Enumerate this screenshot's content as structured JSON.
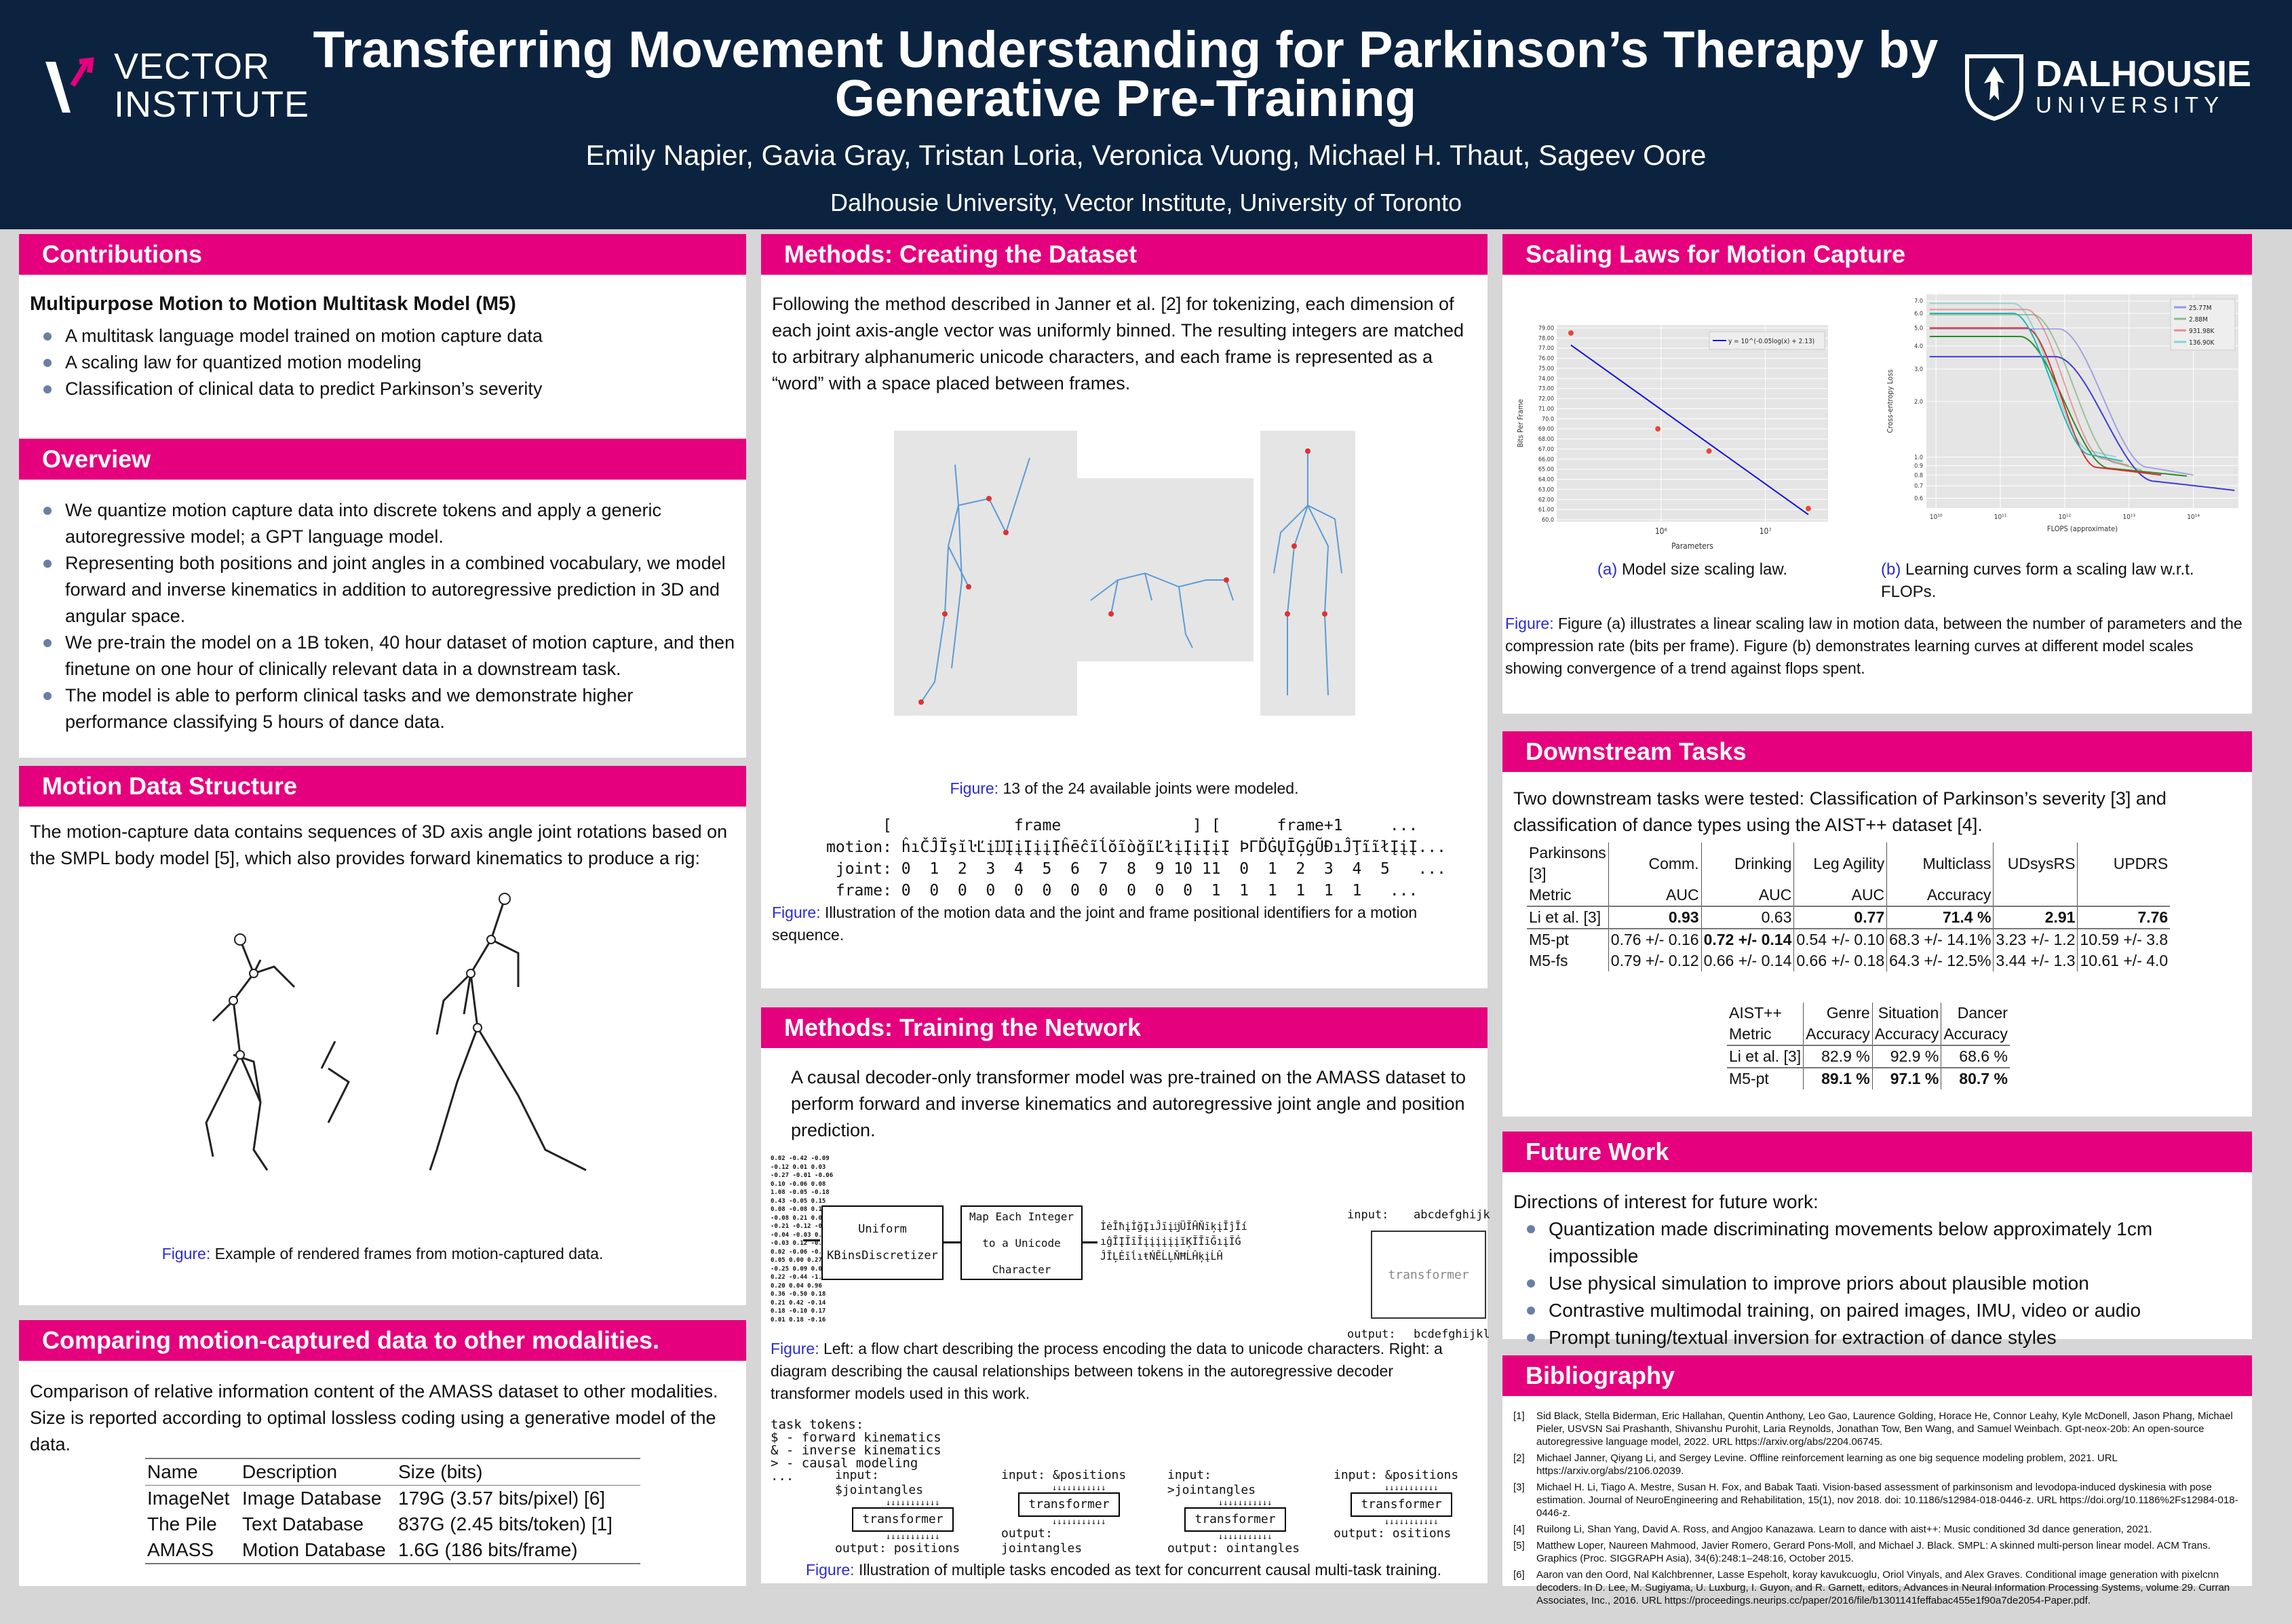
{
  "header": {
    "title": "Transferring Movement Understanding for Parkinson’s Therapy by Generative Pre-Training",
    "authors": "Emily Napier, Gavia Gray, Tristan Loria, Veronica Vuong, Michael H. Thaut, Sageev Oore",
    "affiliations": "Dalhousie University, Vector Institute, University of Toronto",
    "logo_left": "VECTOR INSTITUTE",
    "logo_left_l1": "VECTOR",
    "logo_left_l2": "INSTITUTE",
    "logo_right_l1": "DALHOUSIE",
    "logo_right_l2": "UNIVERSITY"
  },
  "colors": {
    "header": "#0c2340",
    "section": "#e5007d",
    "caption": "#2b2bd0"
  },
  "contributions": {
    "title": "Contributions",
    "subtitle": "Multipurpose Motion to Motion Multitask Model (M5)",
    "items": [
      "A multitask language model trained on motion capture data",
      "A scaling law for quantized motion modeling",
      "Classification of clinical data to predict Parkinson’s severity"
    ]
  },
  "overview": {
    "title": "Overview",
    "items": [
      "We quantize motion capture data into discrete tokens and apply a generic autoregressive model; a GPT language model.",
      "Representing both positions and joint angles in a combined vocabulary, we model forward and inverse kinematics in addition to autoregressive prediction in 3D and angular space.",
      "We pre-train the model on a 1B token, 40 hour dataset of motion capture, and then finetune on one hour of clinically relevant data in a downstream task.",
      "The model is able to perform clinical tasks and we demonstrate higher performance classifying 5 hours of dance data."
    ]
  },
  "motion_structure": {
    "title": "Motion Data Structure",
    "text": "The motion-capture data contains sequences of 3D axis angle joint rotations based on the SMPL body model [5], which also provides forward kinematics to produce a rig:",
    "fig_label": "Figure:",
    "caption": "Example of rendered frames from motion-captured data."
  },
  "comparing": {
    "title": "Comparing motion-captured data to other modalities.",
    "text": "Comparison of relative information content of the AMASS dataset to other modalities. Size is reported according to optimal lossless coding using a generative model of the data.",
    "columns": [
      "Name",
      "Description",
      "Size (bits)"
    ],
    "rows": [
      [
        "ImageNet",
        "Image Database",
        "179G (3.57 bits/pixel) [6]"
      ],
      [
        "The Pile",
        "Text Database",
        "837G (2.45 bits/token) [1]"
      ],
      [
        "AMASS",
        "Motion Database",
        "1.6G (186 bits/frame)"
      ]
    ]
  },
  "dataset": {
    "title": "Methods: Creating the Dataset",
    "text": "Following the method described in Janner et al. [2] for tokenizing, each dimension of each joint axis-angle vector was uniformly binned. The resulting integers are matched to arbitrary alphanumeric unicode characters, and each frame is represented as a “word” with a space placed between frames.",
    "fig1_label": "Figure:",
    "fig1_caption": "13 of the 24 available joints were modeled.",
    "seq": {
      "header": "      [             frame              ] [      frame+1     ...",
      "motion": "motion: ĥıČĴĬşĭŀĽįĲĮįĮįįĮĥēĉĩĺŏĩòğĩĽłįĮįĮįĮ ÞΓĎĠŲĪĢġŨĐıĴŢĩĩłĮįĮ...",
      "joint": " joint: 0  1  2  3  4  5  6  7  8  9 10 11  0  1  2  3  4  5   ...",
      "frame": " frame: 0  0  0  0  0  0  0  0  0  0  0  1  1  1  1  1  1   ..."
    },
    "fig2_label": "Figure:",
    "fig2_caption": "Illustration of the motion data and the joint and frame positional identifiers for a motion sequence."
  },
  "training": {
    "title": "Methods: Training the Network",
    "text": "A causal decoder-only transformer model was pre-trained on the AMASS dataset to perform forward and inverse kinematics and autoregressive joint angle and position prediction.",
    "numbers": [
      "0.02 -0.42 -0.09",
      "-0.12 0.01 0.03",
      "-0.27 -0.01 -0.06",
      "0.10 -0.06 0.08",
      "1.08 -0.05 -0.18",
      "0.43 -0.05 0.15",
      "0.08 -0.08 0.11",
      "-0.08 0.21 0.05",
      "-0.21 -0.12 -0.00",
      "-0.04 -0.03 0.03",
      "-0.03 0.12 -0.04",
      "0.02 -0.06 -0.29",
      "0.05 0.00 0.27",
      "-0.25 0.09 0.02",
      "0.22 -0.44 -1.08",
      "0.20 0.04 0.96",
      "0.36 -0.50 0.18",
      "0.21 0.42 -0.14",
      "0.18 -0.10 0.17",
      "0.01 0.18 -0.16"
    ],
    "box1": "Uniform KBinsDiscretizer",
    "box2": "Map Each Integer to a Unicode Character",
    "unicode_lines": [
      "İėĪħįİğĮıĴīįĳÜĬĤŇīķįĪĵĪí",
      "ıĝĪĮĬīĬįįįįįįĭĶĬĪīĞıįĬĠ",
      "ĴĪĻĖīĺıŧŃĒĹĻŇĦĹĤķįĹĤ"
    ],
    "input_label": "input:",
    "input_seq": "abcdefghijk",
    "transformer": "transformer",
    "output_label": "output:",
    "output_seq": "bcdefghijkl",
    "fig1_label": "Figure:",
    "fig1_caption": "Left: a flow chart describing the process encoding the data to unicode characters. Right: a diagram describing the causal relationships between tokens in the autoregressive decoder transformer models used in this work.",
    "task_tokens": [
      "task tokens:",
      "$ - forward kinematics",
      "& - inverse kinematics",
      "> - causal modeling",
      "..."
    ],
    "tasks": [
      {
        "input": "$jointangles",
        "output": "positions"
      },
      {
        "input": "&positions",
        "output": "jointangles"
      },
      {
        "input": ">jointangles",
        "output": "ointangles"
      },
      {
        "input": "&positions",
        "output": "ositions"
      }
    ],
    "fig2_label": "Figure:",
    "fig2_caption": "Illustration of multiple tasks encoded as text for concurrent causal multi-task training."
  },
  "scaling": {
    "title": "Scaling Laws for Motion Capture",
    "fig_a": {
      "label": "(a)",
      "caption": "Model size scaling law.",
      "xlabel": "Parameters",
      "ylabel": "Bits Per Frame",
      "legend": "y = 10^(-0.05log(x) + 2.13)",
      "x_ticks": [
        "10⁶",
        "10⁷"
      ],
      "y_ticks": [
        "60.0",
        "61.00",
        "62.00",
        "63.00",
        "64.00",
        "65.00",
        "66.00",
        "67.00",
        "68.00",
        "69.00",
        "70.0",
        "71.00",
        "72.00",
        "73.00",
        "74.00",
        "75.00",
        "76.00",
        "77.00",
        "78.00",
        "79.00"
      ],
      "points": [
        {
          "x": 136900,
          "y": 78.5
        },
        {
          "x": 931980,
          "y": 69.0
        },
        {
          "x": 2880000,
          "y": 66.8
        },
        {
          "x": 25770000,
          "y": 61.1
        }
      ],
      "fit": {
        "a": -0.05,
        "b": 2.13
      }
    },
    "fig_b": {
      "label": "(b)",
      "caption": "Learning curves form a scaling law w.r.t. FLOPs.",
      "xlabel": "FLOPS (approximate)",
      "ylabel": "Cross-entropy Loss",
      "x_ticks": [
        "10¹⁰",
        "10¹¹",
        "10¹²",
        "10¹³",
        "10¹⁴"
      ],
      "y_ticks": [
        "0.6",
        "0.7",
        "0.8",
        "0.9",
        "1.0",
        "2.0",
        "3.0",
        "4.0",
        "5.0",
        "6.0",
        "7.0"
      ],
      "series": [
        {
          "name": "25.77M",
          "color": "#3b3bdd"
        },
        {
          "name": "2.88M",
          "color": "#2a8a2a"
        },
        {
          "name": "931.98K",
          "color": "#e02a2a"
        },
        {
          "name": "136.90K",
          "color": "#20b5b5"
        }
      ]
    },
    "fig_label": "Figure:",
    "caption": "Figure (a) illustrates a linear scaling law in motion data, between the number of parameters and the compression rate (bits per frame). Figure (b) demonstrates learning curves at different model scales showing convergence of a trend against flops spent."
  },
  "downstream": {
    "title": "Downstream Tasks",
    "text": "Two downstream tasks were tested: Classification of Parkinson’s severity [3] and classification of dance types using the AIST++ dataset [4].",
    "pk_head1": [
      "Parkinsons [3]",
      "Comm.",
      "Drinking",
      "Leg Agility",
      "Multiclass",
      "UDsysRS",
      "UPDRS"
    ],
    "pk_head2": [
      "Metric",
      "AUC",
      "AUC",
      "AUC",
      "Accuracy",
      "",
      ""
    ],
    "pk_rows": [
      [
        "Li et al. [3]",
        "0.93",
        "0.63",
        "0.77",
        "71.4 %",
        "2.91",
        "7.76"
      ],
      [
        "M5-pt",
        "0.76 +/- 0.16",
        "0.72 +/- 0.14",
        "0.54 +/- 0.10",
        "68.3 +/- 14.1%",
        "3.23 +/- 1.2",
        "10.59 +/- 3.8"
      ],
      [
        "M5-fs",
        "0.79 +/- 0.12",
        "0.66 +/- 0.14",
        "0.66 +/- 0.18",
        "64.3 +/- 12.5%",
        "3.44 +/- 1.3",
        "10.61 +/- 4.0"
      ]
    ],
    "ai_head1": [
      "AIST++",
      "Genre",
      "Situation",
      "Dancer"
    ],
    "ai_head2": [
      "Metric",
      "Accuracy",
      "Accuracy",
      "Accuracy"
    ],
    "ai_rows": [
      [
        "Li et al. [3]",
        "82.9 %",
        "92.9 %",
        "68.6 %"
      ],
      [
        "M5-pt",
        "89.1 %",
        "97.1 %",
        "80.7 %"
      ]
    ]
  },
  "future": {
    "title": "Future Work",
    "intro": "Directions of interest for future work:",
    "items": [
      "Quantization made discriminating movements below approximately 1cm impossible",
      "Use physical simulation to improve priors about plausible motion",
      "Contrastive multimodal training, on paired images, IMU, video or audio",
      "Prompt tuning/textual inversion for extraction of dance styles"
    ]
  },
  "bibliography": {
    "title": "Bibliography",
    "items": [
      {
        "n": "[1]",
        "text": "Sid Black, Stella Biderman, Eric Hallahan, Quentin Anthony, Leo Gao, Laurence Golding, Horace He, Connor Leahy, Kyle McDonell, Jason Phang, Michael Pieler, USVSN Sai Prashanth, Shivanshu Purohit, Laria Reynolds, Jonathan Tow, Ben Wang, and Samuel Weinbach. Gpt-neox-20b: An open-source autoregressive language model, 2022. URL https://arxiv.org/abs/2204.06745."
      },
      {
        "n": "[2]",
        "text": "Michael Janner, Qiyang Li, and Sergey Levine. Offline reinforcement learning as one big sequence modeling problem, 2021. URL https://arxiv.org/abs/2106.02039."
      },
      {
        "n": "[3]",
        "text": "Michael H. Li, Tiago A. Mestre, Susan H. Fox, and Babak Taati. Vision-based assessment of parkinsonism and levodopa-induced dyskinesia with pose estimation. Journal of NeuroEngineering and Rehabilitation, 15(1), nov 2018. doi: 10.1186/s12984-018-0446-z. URL https://doi.org/10.1186%2Fs12984-018-0446-z."
      },
      {
        "n": "[4]",
        "text": "Ruilong Li, Shan Yang, David A. Ross, and Angjoo Kanazawa. Learn to dance with aist++: Music conditioned 3d dance generation, 2021."
      },
      {
        "n": "[5]",
        "text": "Matthew Loper, Naureen Mahmood, Javier Romero, Gerard Pons-Moll, and Michael J. Black. SMPL: A skinned multi-person linear model. ACM Trans. Graphics (Proc. SIGGRAPH Asia), 34(6):248:1–248:16, October 2015."
      },
      {
        "n": "[6]",
        "text": "Aaron van den Oord, Nal Kalchbrenner, Lasse Espeholt, koray kavukcuoglu, Oriol Vinyals, and Alex Graves. Conditional image generation with pixelcnn decoders. In D. Lee, M. Sugiyama, U. Luxburg, I. Guyon, and R. Garnett, editors, Advances in Neural Information Processing Systems, volume 29. Curran Associates, Inc., 2016. URL https://proceedings.neurips.cc/paper/2016/file/b1301141feffabac455e1f90a7de2054-Paper.pdf."
      }
    ]
  }
}
